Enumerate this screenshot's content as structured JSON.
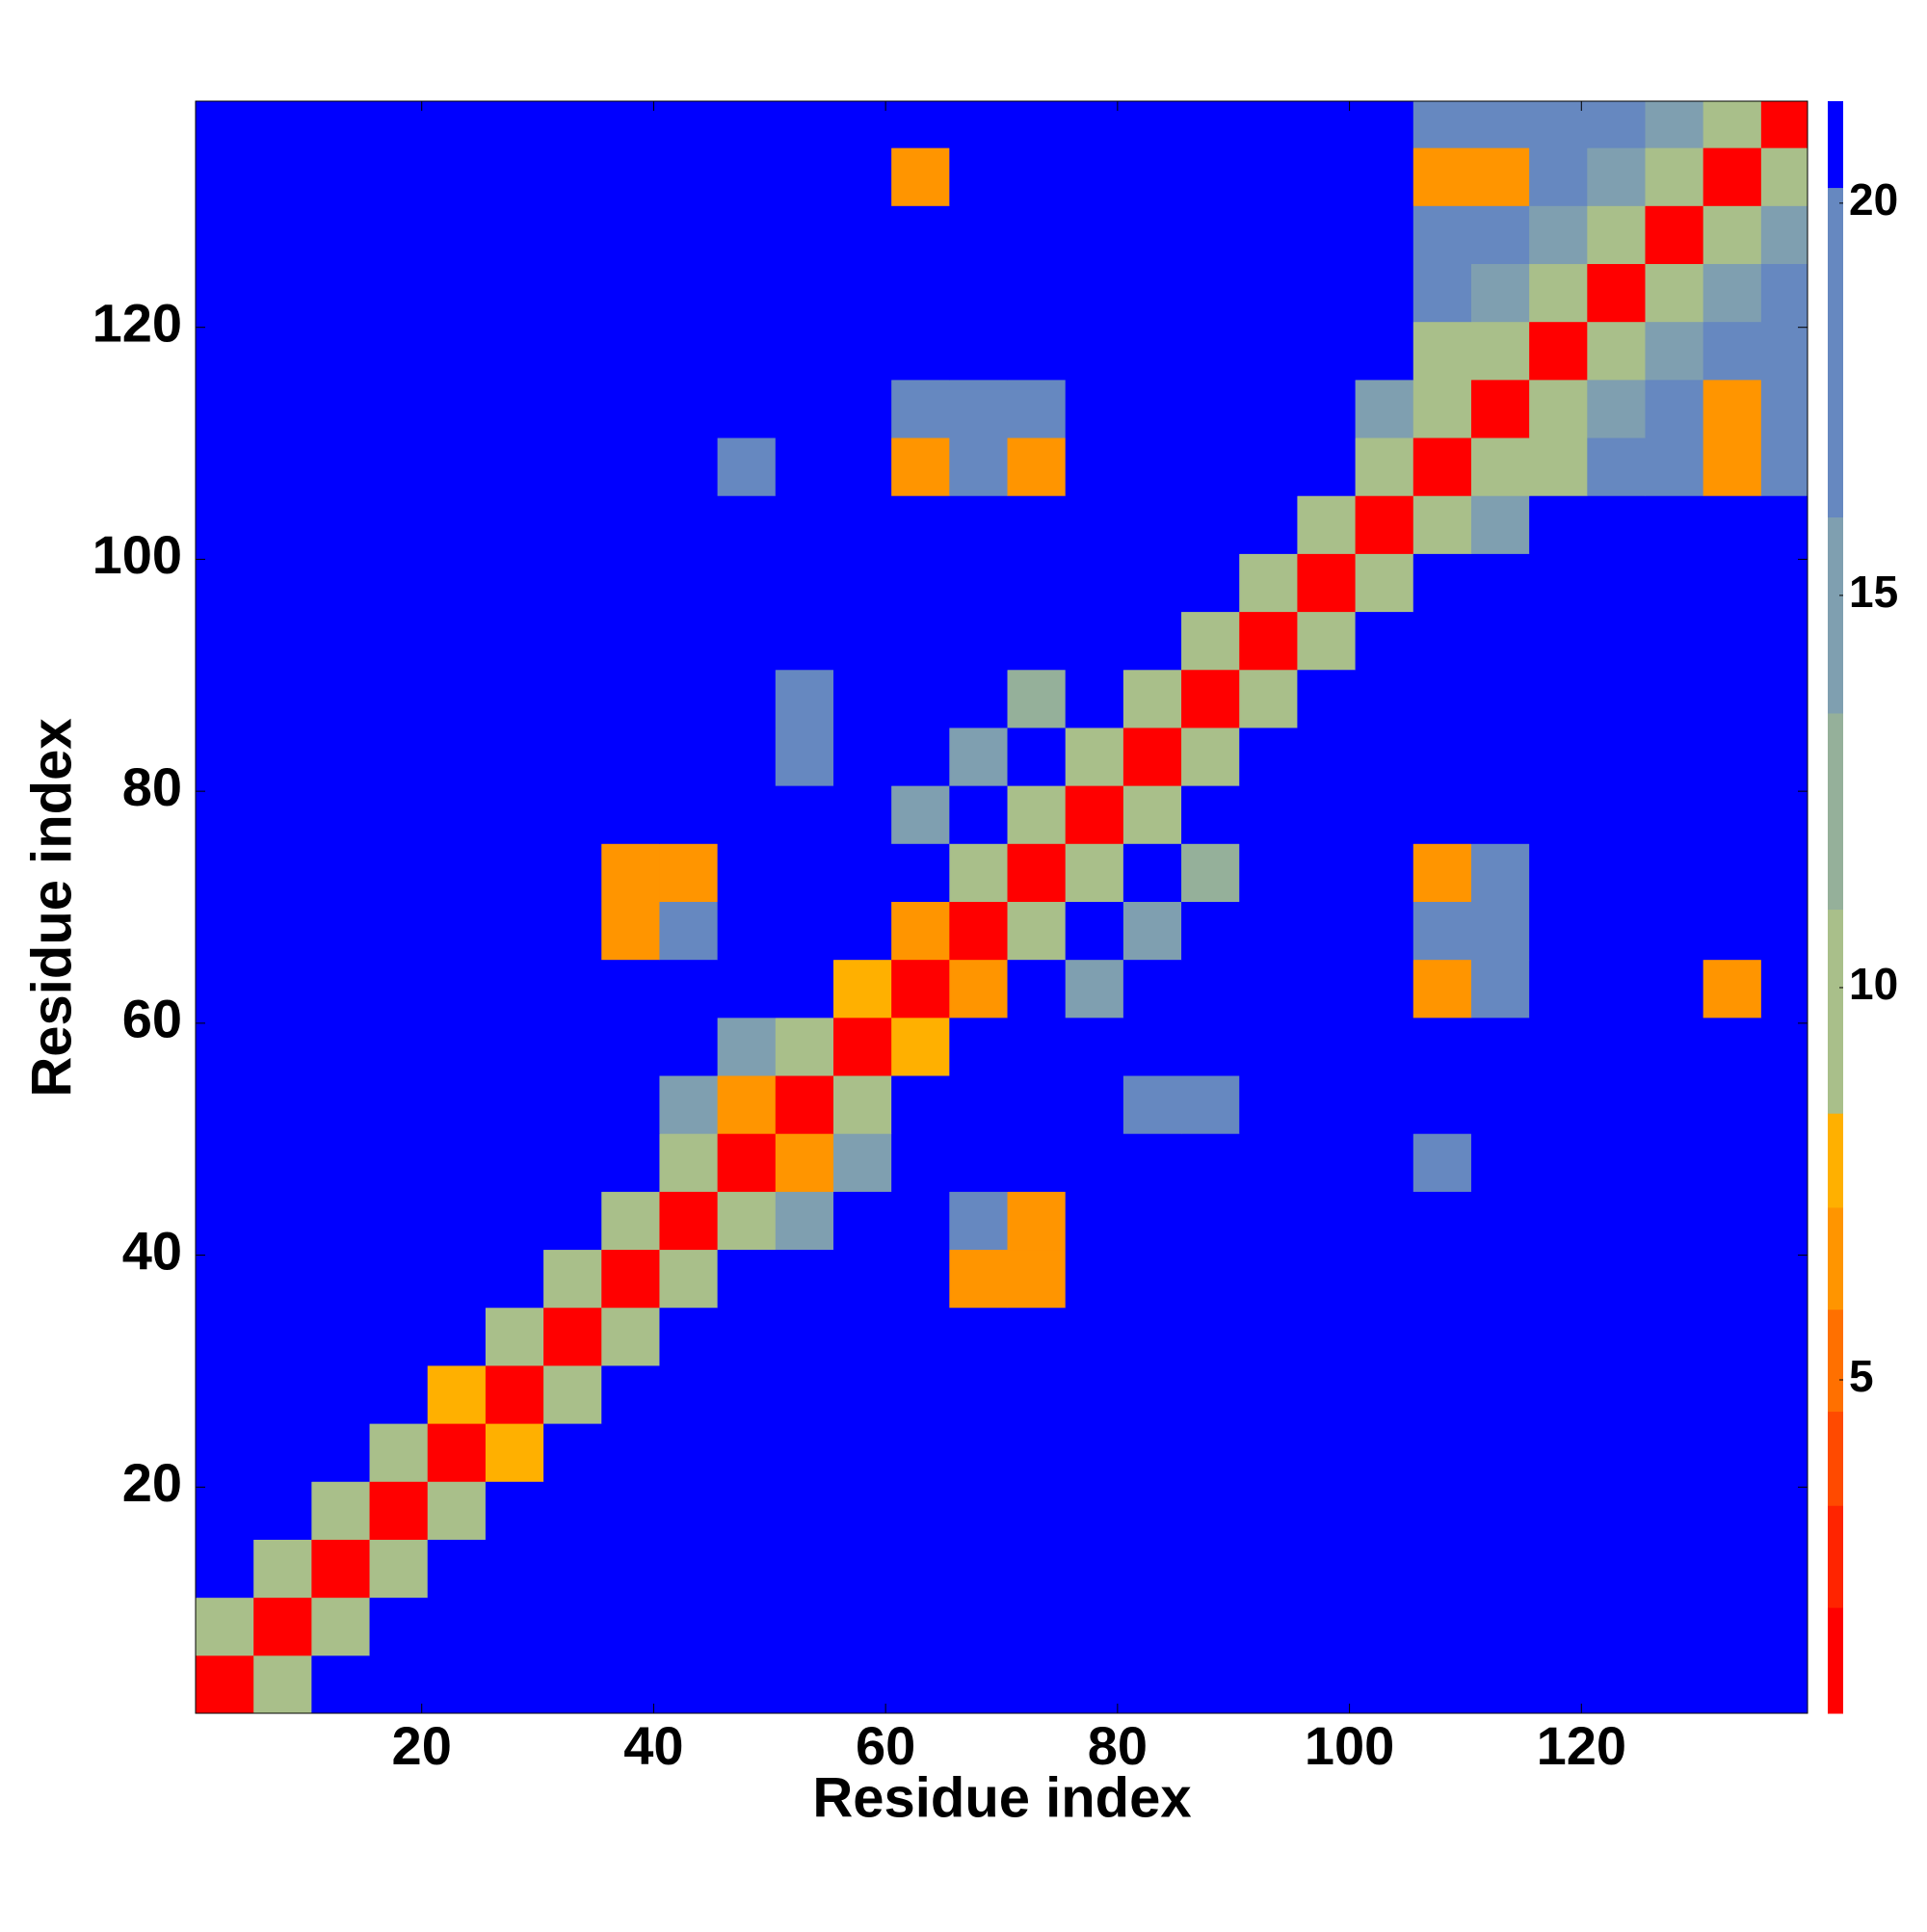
{
  "chart_data": {
    "type": "heatmap",
    "xlabel": "Residue index",
    "ylabel": "Residue index",
    "xlim": [
      0.5,
      139.5
    ],
    "ylim": [
      0.5,
      139.5
    ],
    "xticks": [
      20,
      40,
      60,
      80,
      100,
      120
    ],
    "yticks": [
      20,
      40,
      60,
      80,
      100,
      120
    ],
    "xbins": [
      0.5,
      5.5,
      10.5,
      15.5,
      20.5,
      25.5,
      30.5,
      35.5,
      40.5,
      45.5,
      50.5,
      55.5,
      60.5,
      65.5,
      70.5,
      75.5,
      80.5,
      85.5,
      90.5,
      95.5,
      100.5,
      105.5,
      110.5,
      115.5,
      120.5,
      125.5,
      130.5,
      135.5,
      139.5
    ],
    "ybins": [
      0.5,
      5.5,
      10.5,
      15.5,
      20.5,
      25.5,
      30.5,
      35.5,
      40.5,
      45.5,
      50.5,
      55.5,
      60.5,
      65.5,
      70.5,
      75.5,
      80.5,
      85.5,
      90.5,
      95.5,
      100.5,
      105.5,
      110.5,
      115.5,
      120.5,
      125.5,
      130.5,
      135.5,
      139.5
    ],
    "values": [
      [
        2,
        11,
        21,
        21,
        21,
        21,
        21,
        21,
        21,
        21,
        21,
        21,
        21,
        21,
        21,
        21,
        21,
        21,
        21,
        21,
        21,
        21,
        21,
        21,
        21,
        21,
        21,
        21
      ],
      [
        11,
        2,
        11,
        21,
        21,
        21,
        21,
        21,
        21,
        21,
        21,
        21,
        21,
        21,
        21,
        21,
        21,
        21,
        21,
        21,
        21,
        21,
        21,
        21,
        21,
        21,
        21,
        21
      ],
      [
        21,
        11,
        2,
        11,
        21,
        21,
        21,
        21,
        21,
        21,
        21,
        21,
        21,
        21,
        21,
        21,
        21,
        21,
        21,
        21,
        21,
        21,
        21,
        21,
        21,
        21,
        21,
        21
      ],
      [
        21,
        21,
        11,
        2,
        11,
        21,
        21,
        21,
        21,
        21,
        21,
        21,
        21,
        21,
        21,
        21,
        21,
        21,
        21,
        21,
        21,
        21,
        21,
        21,
        21,
        21,
        21,
        21
      ],
      [
        21,
        21,
        21,
        11,
        2,
        8,
        21,
        21,
        21,
        21,
        21,
        21,
        21,
        21,
        21,
        21,
        21,
        21,
        21,
        21,
        21,
        21,
        21,
        21,
        21,
        21,
        21,
        21
      ],
      [
        21,
        21,
        21,
        21,
        8,
        2,
        11,
        21,
        21,
        21,
        21,
        21,
        21,
        21,
        21,
        21,
        21,
        21,
        21,
        21,
        21,
        21,
        21,
        21,
        21,
        21,
        21,
        21
      ],
      [
        21,
        21,
        21,
        21,
        21,
        11,
        2,
        11,
        21,
        21,
        21,
        21,
        21,
        21,
        21,
        21,
        21,
        21,
        21,
        21,
        21,
        21,
        21,
        21,
        21,
        21,
        21,
        21
      ],
      [
        21,
        21,
        21,
        21,
        21,
        21,
        11,
        2,
        11,
        21,
        21,
        21,
        21,
        6,
        6,
        21,
        21,
        21,
        21,
        21,
        21,
        21,
        21,
        21,
        21,
        21,
        21,
        21
      ],
      [
        21,
        21,
        21,
        21,
        21,
        21,
        21,
        11,
        2,
        11,
        14,
        21,
        21,
        19,
        7,
        21,
        21,
        21,
        21,
        21,
        21,
        21,
        21,
        21,
        21,
        21,
        21,
        21
      ],
      [
        21,
        21,
        21,
        21,
        21,
        21,
        21,
        21,
        11,
        2,
        7,
        14,
        21,
        21,
        21,
        21,
        21,
        21,
        21,
        21,
        21,
        18,
        21,
        21,
        21,
        21,
        21,
        21
      ],
      [
        21,
        21,
        21,
        21,
        21,
        21,
        21,
        21,
        14,
        7,
        2,
        11,
        21,
        21,
        21,
        21,
        19,
        19,
        21,
        21,
        21,
        21,
        21,
        21,
        21,
        21,
        21,
        21
      ],
      [
        21,
        21,
        21,
        21,
        21,
        21,
        21,
        21,
        21,
        14,
        11,
        2,
        8,
        21,
        21,
        21,
        21,
        21,
        21,
        21,
        21,
        21,
        21,
        21,
        21,
        21,
        21,
        21
      ],
      [
        21,
        21,
        21,
        21,
        21,
        21,
        21,
        21,
        21,
        21,
        21,
        8,
        2,
        7,
        21,
        16,
        21,
        21,
        21,
        21,
        21,
        7,
        17,
        21,
        21,
        21,
        7,
        21
      ],
      [
        21,
        21,
        21,
        21,
        21,
        21,
        21,
        6,
        19,
        21,
        21,
        21,
        7,
        2,
        11,
        21,
        15,
        21,
        21,
        21,
        21,
        17,
        17,
        21,
        21,
        21,
        21,
        21
      ],
      [
        21,
        21,
        21,
        21,
        21,
        21,
        21,
        6,
        7,
        21,
        21,
        21,
        21,
        11,
        2,
        11,
        21,
        12,
        21,
        21,
        21,
        7,
        18,
        21,
        21,
        21,
        21,
        21
      ],
      [
        21,
        21,
        21,
        21,
        21,
        21,
        21,
        21,
        21,
        21,
        21,
        21,
        16,
        21,
        11,
        2,
        11,
        21,
        21,
        21,
        21,
        21,
        21,
        21,
        21,
        21,
        21,
        21
      ],
      [
        21,
        21,
        21,
        21,
        21,
        21,
        21,
        21,
        21,
        21,
        19,
        21,
        21,
        15,
        21,
        11,
        2,
        11,
        21,
        21,
        21,
        21,
        21,
        21,
        21,
        21,
        21,
        21
      ],
      [
        21,
        21,
        21,
        21,
        21,
        21,
        21,
        21,
        21,
        21,
        19,
        21,
        21,
        21,
        12,
        21,
        11,
        2,
        11,
        21,
        21,
        21,
        21,
        21,
        21,
        21,
        21,
        21
      ],
      [
        21,
        21,
        21,
        21,
        21,
        21,
        21,
        21,
        21,
        21,
        21,
        21,
        21,
        21,
        21,
        21,
        21,
        11,
        2,
        11,
        21,
        21,
        21,
        21,
        21,
        21,
        21,
        21
      ],
      [
        21,
        21,
        21,
        21,
        21,
        21,
        21,
        21,
        21,
        21,
        21,
        21,
        21,
        21,
        21,
        21,
        21,
        21,
        11,
        2,
        11,
        21,
        21,
        21,
        21,
        21,
        21,
        21
      ],
      [
        21,
        21,
        21,
        21,
        21,
        21,
        21,
        21,
        21,
        21,
        21,
        21,
        21,
        21,
        21,
        21,
        21,
        21,
        21,
        11,
        2,
        11,
        15,
        21,
        21,
        21,
        21,
        21
      ],
      [
        21,
        21,
        21,
        21,
        21,
        21,
        21,
        21,
        21,
        18,
        21,
        21,
        7,
        17,
        7,
        21,
        21,
        21,
        21,
        21,
        11,
        2,
        11,
        9,
        18,
        18,
        7,
        18
      ],
      [
        21,
        21,
        21,
        21,
        21,
        21,
        21,
        21,
        21,
        21,
        21,
        21,
        17,
        17,
        18,
        21,
        21,
        21,
        21,
        21,
        15,
        11,
        2,
        11,
        15,
        18,
        7,
        18
      ],
      [
        21,
        21,
        21,
        21,
        21,
        21,
        21,
        21,
        21,
        21,
        21,
        21,
        21,
        21,
        21,
        21,
        21,
        21,
        21,
        21,
        21,
        9,
        11,
        2,
        11,
        15,
        18,
        18
      ],
      [
        21,
        21,
        21,
        21,
        21,
        21,
        21,
        21,
        21,
        21,
        21,
        21,
        21,
        21,
        21,
        21,
        21,
        21,
        21,
        21,
        21,
        18,
        15,
        11,
        2,
        11,
        15,
        18
      ],
      [
        21,
        21,
        21,
        21,
        21,
        21,
        21,
        21,
        21,
        21,
        21,
        21,
        21,
        21,
        21,
        21,
        21,
        21,
        21,
        21,
        21,
        18,
        18,
        15,
        11,
        2,
        11,
        15
      ],
      [
        21,
        21,
        21,
        21,
        21,
        21,
        21,
        21,
        21,
        21,
        21,
        21,
        7,
        21,
        21,
        21,
        21,
        21,
        21,
        21,
        21,
        7,
        7,
        18,
        15,
        11,
        2,
        11
      ],
      [
        21,
        21,
        21,
        21,
        21,
        21,
        21,
        21,
        21,
        21,
        21,
        21,
        21,
        21,
        21,
        21,
        21,
        21,
        21,
        21,
        21,
        18,
        18,
        18,
        18,
        15,
        11,
        2
      ]
    ],
    "clim": [
      0.75,
      21.3
    ],
    "cticks": [
      5,
      10,
      15,
      20
    ],
    "levels": [
      0.75,
      2.1,
      3.4,
      4.6,
      5.9,
      7.2,
      8.4,
      11,
      13.5,
      16,
      20.2,
      21.3
    ],
    "level_colors": [
      "#ff0000",
      "#ff2400",
      "#ff4a00",
      "#ff7000",
      "#ff9500",
      "#ffb000",
      "#a9bf8a",
      "#95b09a",
      "#7f9fb0",
      "#6688c0",
      "#0000ff"
    ]
  }
}
